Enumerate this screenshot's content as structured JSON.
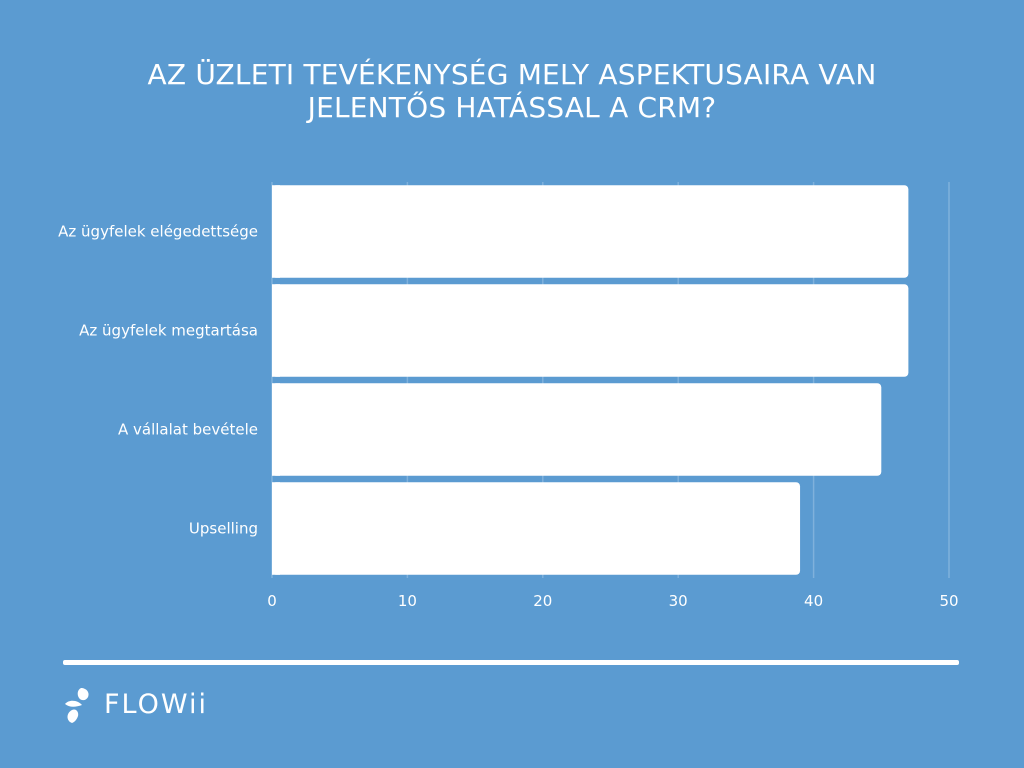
{
  "title": {
    "line1": "AZ ÜZLETI TEVÉKENYSÉG MELY ASPEKTUSAIRA VAN",
    "line2": "JELENTŐS HATÁSSAL A CRM?"
  },
  "brand": {
    "name": "FLOWii",
    "logo_icon": "flowii-droplets-icon"
  },
  "colors": {
    "background": "#5b9bd1",
    "bar": "#ffffff",
    "grid": "#7fb1dc",
    "text": "#ffffff"
  },
  "chart_data": {
    "type": "bar",
    "orientation": "horizontal",
    "title": "AZ ÜZLETI TEVÉKENYSÉG MELY ASPEKTUSAIRA VAN JELENTŐS HATÁSSAL A CRM?",
    "xlabel": "",
    "ylabel": "",
    "categories": [
      "Az ügyfelek elégedettsége",
      "Az ügyfelek megtartása",
      "A vállalat bevétele",
      "Upselling"
    ],
    "values": [
      47,
      47,
      45,
      39
    ],
    "xlim": [
      0,
      50
    ],
    "xticks": [
      0,
      10,
      20,
      30,
      40,
      50
    ],
    "grid": true,
    "legend": "none"
  }
}
